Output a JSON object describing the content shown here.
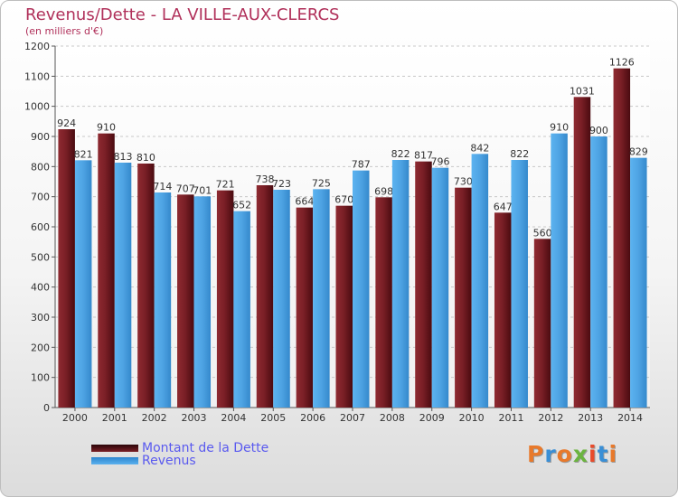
{
  "title": "Revenus/Dette - LA VILLE-AUX-CLERCS",
  "subtitle": "(en milliers d'€)",
  "logo_text": "Proxiti",
  "colors": {
    "dette": "#7a1f26",
    "revenus": "#4ea3e3",
    "title": "#b0305a",
    "legend_text": "#5a5aef"
  },
  "chart_data": {
    "type": "bar",
    "categories": [
      "2000",
      "2001",
      "2002",
      "2003",
      "2004",
      "2005",
      "2006",
      "2007",
      "2008",
      "2009",
      "2010",
      "2011",
      "2012",
      "2013",
      "2014"
    ],
    "series": [
      {
        "name": "Montant de la Dette",
        "values": [
          924,
          910,
          810,
          707,
          721,
          738,
          664,
          670,
          698,
          817,
          730,
          647,
          560,
          1031,
          1126
        ]
      },
      {
        "name": "Revenus",
        "values": [
          821,
          813,
          714,
          701,
          652,
          723,
          725,
          787,
          822,
          796,
          842,
          822,
          910,
          900,
          829
        ]
      }
    ],
    "ylim": [
      0,
      1200
    ],
    "yticks": [
      0,
      100,
      200,
      300,
      400,
      500,
      600,
      700,
      800,
      900,
      1000,
      1100,
      1200
    ],
    "grid": true,
    "legend_position": "bottom-left"
  }
}
